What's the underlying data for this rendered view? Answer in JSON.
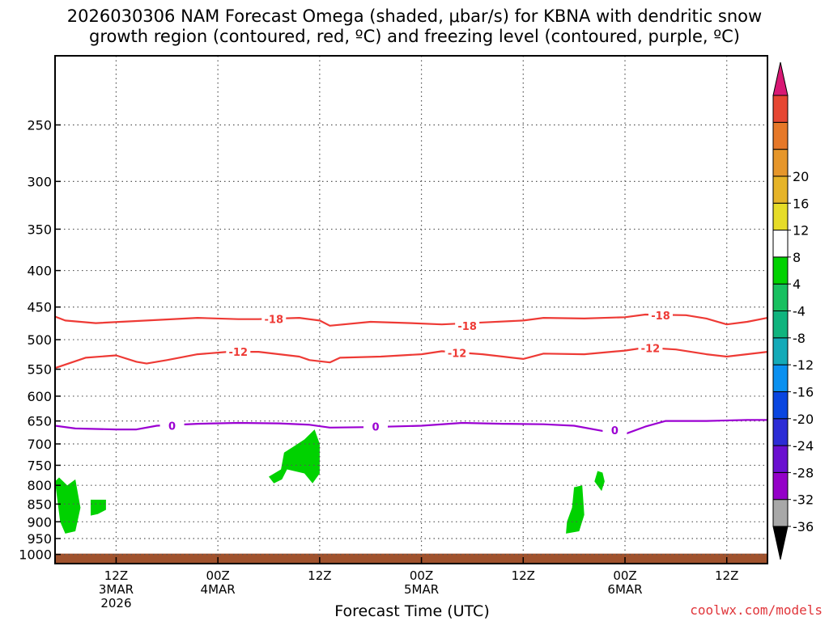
{
  "chart_data": {
    "type": "time-height cross-section",
    "title_line1": "2026030306 NAM Forecast Omega (shaded, μbar/s) for KBNA with dendritic snow",
    "title_line2": "growth region (contoured, red, ºC) and freezing level (contoured, purple, ºC)",
    "xlabel": "Forecast Time (UTC)",
    "ylabel": "",
    "credit": "coolwx.com/models",
    "x_range_hours": [
      6,
      76
    ],
    "y_range_hpa": [
      1030,
      200
    ],
    "y_ticks": [
      250,
      300,
      350,
      400,
      450,
      500,
      550,
      600,
      650,
      700,
      750,
      800,
      850,
      900,
      950,
      1000
    ],
    "x_ticks": [
      {
        "hour": 12,
        "line1": "12Z",
        "line2": "3MAR",
        "line3": "2026"
      },
      {
        "hour": 22,
        "line1": "00Z",
        "line2": "4MAR",
        "line3": ""
      },
      {
        "hour": 32,
        "line1": "12Z",
        "line2": "",
        "line3": ""
      },
      {
        "hour": 42,
        "line1": "00Z",
        "line2": "5MAR",
        "line3": ""
      },
      {
        "hour": 52,
        "line1": "12Z",
        "line2": "",
        "line3": ""
      },
      {
        "hour": 62,
        "line1": "00Z",
        "line2": "6MAR",
        "line3": ""
      },
      {
        "hour": 72,
        "line1": "12Z",
        "line2": "",
        "line3": ""
      }
    ],
    "contours": [
      {
        "name": "dendritic-18",
        "level": "-18",
        "color": "#ee3a35",
        "points": [
          [
            6,
            464
          ],
          [
            7,
            470
          ],
          [
            10,
            474
          ],
          [
            15,
            470
          ],
          [
            20,
            466
          ],
          [
            24,
            468
          ],
          [
            26,
            468
          ],
          [
            30,
            466
          ],
          [
            32,
            470
          ],
          [
            33,
            478
          ],
          [
            37,
            472
          ],
          [
            41,
            474
          ],
          [
            44,
            476
          ],
          [
            48,
            473
          ],
          [
            52,
            470
          ],
          [
            54,
            466
          ],
          [
            58,
            467
          ],
          [
            62,
            465
          ],
          [
            64,
            461
          ],
          [
            68,
            462
          ],
          [
            70,
            467
          ],
          [
            72,
            476
          ],
          [
            74,
            472
          ],
          [
            76,
            466
          ]
        ],
        "labels": [
          [
            27.5,
            468
          ],
          [
            46.5,
            478
          ],
          [
            65.5,
            462
          ]
        ]
      },
      {
        "name": "dendritic-12",
        "level": "-12",
        "color": "#ee3a35",
        "points": [
          [
            6,
            548
          ],
          [
            8,
            536
          ],
          [
            9,
            530
          ],
          [
            12,
            526
          ],
          [
            14,
            537
          ],
          [
            15,
            540
          ],
          [
            17,
            534
          ],
          [
            20,
            524
          ],
          [
            23,
            520
          ],
          [
            26,
            520
          ],
          [
            30,
            528
          ],
          [
            31,
            534
          ],
          [
            33,
            538
          ],
          [
            34,
            530
          ],
          [
            38,
            528
          ],
          [
            42,
            524
          ],
          [
            44,
            519
          ],
          [
            48,
            524
          ],
          [
            50,
            528
          ],
          [
            52,
            532
          ],
          [
            54,
            523
          ],
          [
            58,
            524
          ],
          [
            62,
            518
          ],
          [
            64,
            513
          ],
          [
            67,
            516
          ],
          [
            70,
            524
          ],
          [
            72,
            528
          ],
          [
            76,
            520
          ]
        ],
        "labels": [
          [
            24,
            520
          ],
          [
            45.5,
            522
          ],
          [
            64.5,
            514
          ]
        ]
      },
      {
        "name": "freezing-level-0",
        "level": "0",
        "color": "#9b00d2",
        "points": [
          [
            6,
            660
          ],
          [
            8,
            666
          ],
          [
            12,
            668
          ],
          [
            14,
            668
          ],
          [
            16,
            660
          ],
          [
            20,
            656
          ],
          [
            24,
            654
          ],
          [
            28,
            655
          ],
          [
            31,
            658
          ],
          [
            33,
            664
          ],
          [
            37,
            663
          ],
          [
            42,
            660
          ],
          [
            46,
            654
          ],
          [
            50,
            656
          ],
          [
            54,
            657
          ],
          [
            57,
            660
          ],
          [
            60,
            672
          ],
          [
            62,
            678
          ],
          [
            64,
            662
          ],
          [
            66,
            650
          ],
          [
            70,
            650
          ],
          [
            74,
            648
          ],
          [
            76,
            648
          ]
        ],
        "labels": [
          [
            17.5,
            660
          ],
          [
            37.5,
            662
          ],
          [
            61,
            670
          ]
        ]
      }
    ],
    "shaded_regions": [
      {
        "name": "omega-green-a",
        "color": "#00d200",
        "points": [
          [
            6,
            790
          ],
          [
            6.5,
            900
          ],
          [
            7,
            935
          ],
          [
            8,
            928
          ],
          [
            8.5,
            860
          ],
          [
            8,
            785
          ],
          [
            7.2,
            800
          ],
          [
            6.4,
            780
          ]
        ]
      },
      {
        "name": "omega-green-b",
        "color": "#00d200",
        "points": [
          [
            9.5,
            838
          ],
          [
            9.5,
            882
          ],
          [
            10.2,
            878
          ],
          [
            11,
            866
          ],
          [
            11,
            838
          ]
        ]
      },
      {
        "name": "omega-green-c",
        "color": "#00d200",
        "points": [
          [
            27,
            778
          ],
          [
            27.5,
            795
          ],
          [
            28.3,
            785
          ],
          [
            28.8,
            760
          ],
          [
            30.5,
            770
          ],
          [
            31.3,
            795
          ],
          [
            32,
            770
          ],
          [
            32,
            700
          ],
          [
            31.5,
            668
          ],
          [
            30.5,
            690
          ],
          [
            29.5,
            705
          ],
          [
            28.5,
            720
          ],
          [
            28.2,
            760
          ],
          [
            27.2,
            775
          ]
        ]
      },
      {
        "name": "omega-green-d",
        "color": "#00d200",
        "points": [
          [
            59.3,
            764
          ],
          [
            59,
            790
          ],
          [
            59.7,
            815
          ],
          [
            60,
            790
          ],
          [
            59.8,
            768
          ]
        ]
      },
      {
        "name": "omega-green-e",
        "color": "#00d200",
        "points": [
          [
            56.3,
            900
          ],
          [
            56.2,
            935
          ],
          [
            57.5,
            928
          ],
          [
            58,
            880
          ],
          [
            57.8,
            800
          ],
          [
            57,
            805
          ],
          [
            56.8,
            860
          ]
        ]
      }
    ],
    "ground_color": "#a0522d",
    "colorbar": {
      "colors": [
        "#000000",
        "#a8a8a8",
        "#9400c8",
        "#6a0fd0",
        "#2c2cd6",
        "#0a46e0",
        "#0a90f0",
        "#14aab8",
        "#10b47e",
        "#18c060",
        "#00d200",
        "#ffffff",
        "#e6dc28",
        "#e6b428",
        "#e6962a",
        "#e67828",
        "#e64632",
        "#d81874"
      ],
      "labels": [
        "-36",
        "-32",
        "-28",
        "-24",
        "-20",
        "-16",
        "-12",
        "-8",
        "-4",
        "4",
        "8",
        "12",
        "16",
        "20"
      ]
    }
  }
}
